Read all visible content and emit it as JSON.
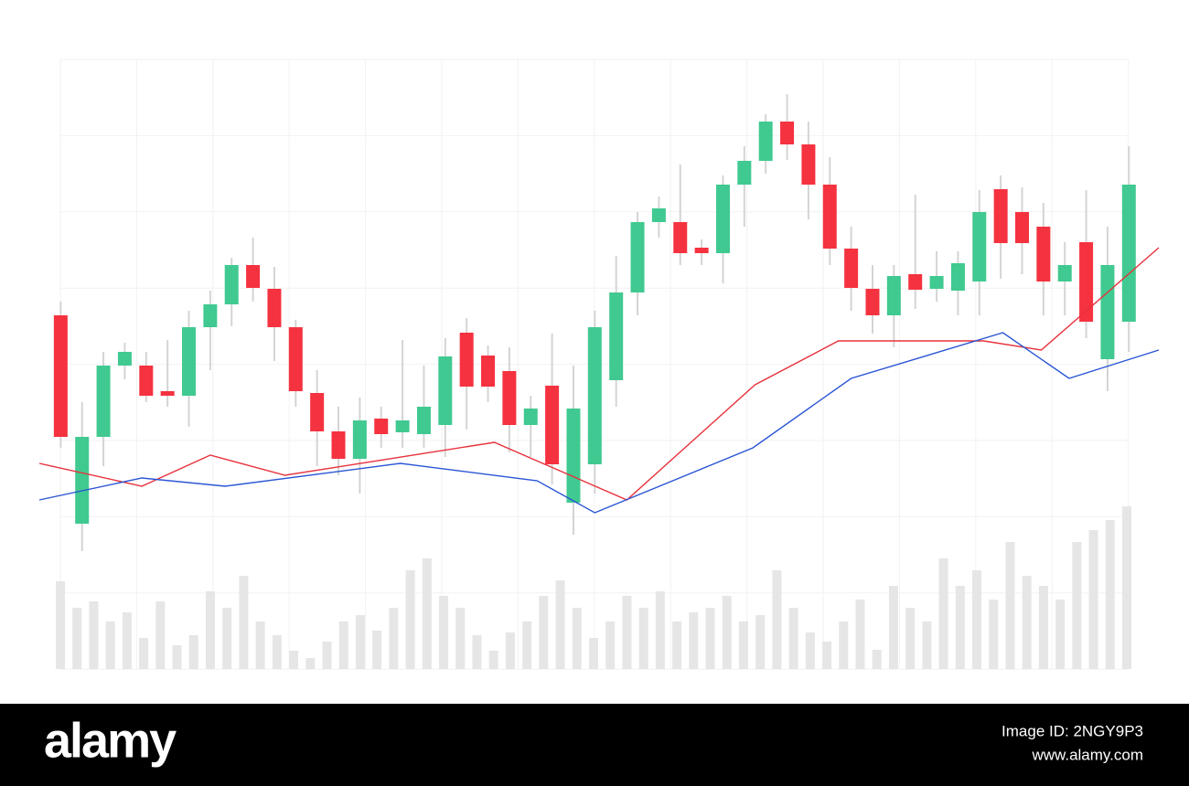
{
  "chart_data": {
    "type": "candlestick",
    "up_color": "#40c990",
    "down_color": "#f5323f",
    "wick_color": "#d4d4d4",
    "xlim": [
      -1,
      51.4
    ],
    "ylim": [
      0,
      540
    ],
    "grid": true,
    "open": [
      255,
      27,
      122,
      200,
      200,
      172,
      167,
      242,
      267,
      310,
      284,
      242,
      170,
      128,
      98,
      142,
      127,
      125,
      135,
      236,
      211,
      194,
      135,
      178,
      50,
      92,
      184,
      280,
      357,
      357,
      329,
      323,
      398,
      424,
      467,
      442,
      398,
      328,
      284,
      255,
      300,
      284,
      282,
      292,
      393,
      368,
      352,
      292,
      335,
      207,
      248
    ],
    "high": [
      270,
      160,
      215,
      225,
      215,
      228,
      260,
      282,
      318,
      340,
      308,
      250,
      195,
      155,
      165,
      155,
      228,
      200,
      230,
      252,
      222,
      220,
      167,
      235,
      200,
      260,
      320,
      368,
      385,
      420,
      338,
      408,
      440,
      475,
      497,
      467,
      428,
      352,
      310,
      310,
      387,
      325,
      325,
      392,
      408,
      395,
      378,
      335,
      392,
      352,
      440
    ],
    "low": [
      110,
      -3,
      90,
      185,
      160,
      155,
      133,
      195,
      243,
      270,
      205,
      155,
      90,
      80,
      60,
      110,
      110,
      110,
      100,
      130,
      160,
      105,
      100,
      70,
      15,
      60,
      155,
      255,
      340,
      310,
      310,
      290,
      352,
      410,
      425,
      360,
      310,
      260,
      235,
      220,
      262,
      270,
      255,
      255,
      295,
      300,
      255,
      255,
      230,
      172,
      215
    ],
    "close": [
      122,
      122,
      200,
      215,
      167,
      167,
      242,
      267,
      310,
      285,
      242,
      172,
      128,
      98,
      140,
      125,
      140,
      155,
      210,
      177,
      177,
      135,
      153,
      92,
      153,
      242,
      280,
      357,
      372,
      323,
      323,
      398,
      424,
      467,
      442,
      398,
      328,
      285,
      255,
      298,
      283,
      298,
      312,
      368,
      334,
      334,
      292,
      310,
      248,
      310,
      398
    ],
    "series": [
      {
        "color": "#e8323c",
        "x": [
          -1.0,
          3.8,
          7.0,
          10.5,
          20.3,
          26.5,
          32.5,
          36.4,
          43.2,
          45.9,
          51.4
        ],
        "values": [
          93,
          68,
          102,
          80,
          116,
          53,
          179,
          227,
          227,
          217,
          329
        ]
      },
      {
        "color": "#2a55d4",
        "x": [
          -1.0,
          3.8,
          7.7,
          15.9,
          22.3,
          25.0,
          32.4,
          37.0,
          44.1,
          47.2,
          51.4
        ],
        "values": [
          53,
          77,
          68,
          93,
          74,
          39,
          110,
          186,
          236,
          186,
          217
        ]
      }
    ],
    "volume": {
      "color": "#e6e6e6",
      "ylim": [
        0,
        180
      ],
      "values": [
        96,
        67,
        74,
        52,
        62,
        34,
        74,
        26,
        37,
        85,
        67,
        102,
        52,
        37,
        20,
        12,
        30,
        52,
        59,
        42,
        67,
        108,
        121,
        80,
        67,
        37,
        20,
        40,
        52,
        80,
        97,
        67,
        34,
        52,
        80,
        67,
        85,
        52,
        62,
        67,
        80,
        52,
        59,
        108,
        67,
        40,
        30,
        52,
        76,
        21,
        91,
        67,
        52,
        121,
        91,
        108,
        76,
        139,
        102,
        91,
        76,
        139,
        152,
        163,
        178
      ]
    }
  },
  "footer": {
    "logo": "alamy",
    "image_id": "Image ID: 2NGY9P3",
    "url": "www.alamy.com"
  }
}
